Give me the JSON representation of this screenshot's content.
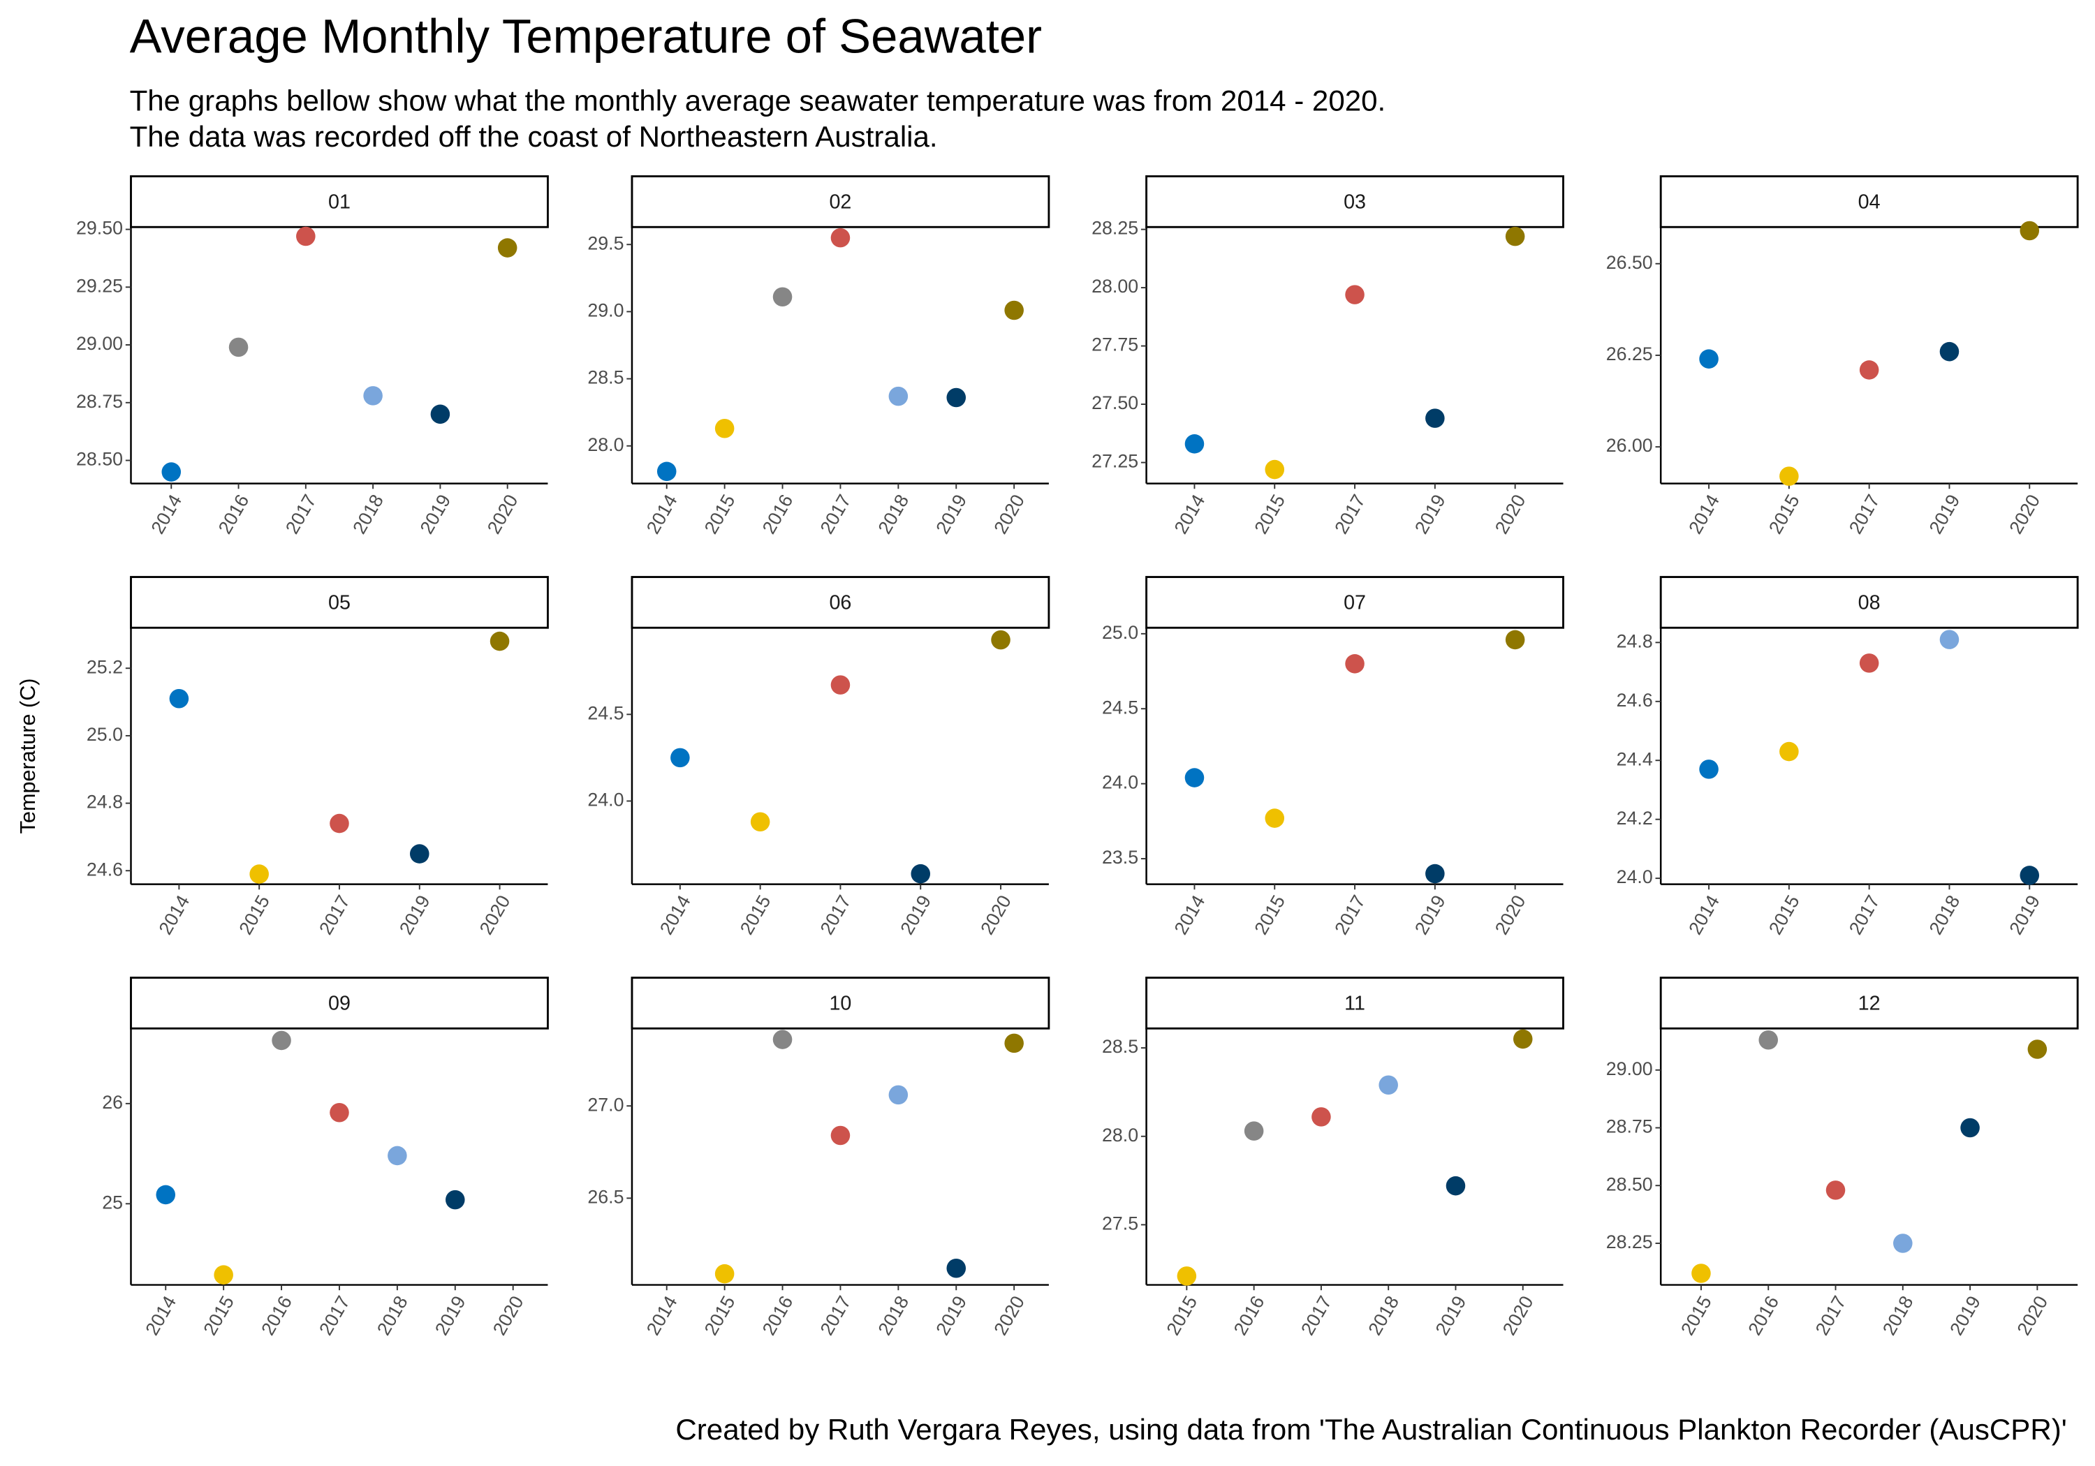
{
  "title": "Average Monthly Temperature of Seawater",
  "subtitle": [
    "The graphs bellow show what the monthly average seawater temperature was from 2014 - 2020.",
    "The data was recorded off the coast of Northeastern Australia."
  ],
  "y_label": "Temperature (C)",
  "caption": "Created by Ruth Vergara Reyes, using data from 'The Australian Continuous Plankton Recorder (AusCPR)'",
  "chart_data": [
    {
      "type": "scatter",
      "title": "01",
      "categories": [
        "2014",
        "2016",
        "2017",
        "2018",
        "2019",
        "2020"
      ],
      "values": [
        28.45,
        28.99,
        29.47,
        28.78,
        28.7,
        29.42
      ],
      "colors": [
        "#0073c2",
        "#868686",
        "#cd534c",
        "#7aa6dc",
        "#003c67",
        "#8f7700"
      ],
      "ylim": [
        28.4,
        29.51
      ],
      "yticks": [
        {
          "value": 28.5,
          "label": "28.50"
        },
        28.75,
        {
          "value": 29,
          "label": "29.00"
        },
        29.25,
        {
          "value": 29.5,
          "label": "29.50"
        }
      ]
    },
    {
      "type": "scatter",
      "title": "02",
      "categories": [
        "2014",
        "2015",
        "2016",
        "2017",
        "2018",
        "2019",
        "2020"
      ],
      "values": [
        27.81,
        28.13,
        29.11,
        29.55,
        28.37,
        28.36,
        29.01
      ],
      "colors": [
        "#0073c2",
        "#efc000",
        "#868686",
        "#cd534c",
        "#7aa6dc",
        "#003c67",
        "#8f7700"
      ],
      "ylim": [
        27.72,
        29.63
      ],
      "yticks": [
        {
          "value": 28,
          "label": "28.0"
        },
        28.5,
        {
          "value": 29,
          "label": "29.0"
        },
        29.5
      ]
    },
    {
      "type": "scatter",
      "title": "03",
      "categories": [
        "2014",
        "2015",
        "2017",
        "2019",
        "2020"
      ],
      "values": [
        27.33,
        27.22,
        27.97,
        27.44,
        28.22
      ],
      "colors": [
        "#0073c2",
        "#efc000",
        "#cd534c",
        "#003c67",
        "#8f7700"
      ],
      "ylim": [
        27.16,
        28.26
      ],
      "yticks": [
        27.25,
        {
          "value": 27.5,
          "label": "27.50"
        },
        27.75,
        {
          "value": 28,
          "label": "28.00"
        },
        28.25
      ]
    },
    {
      "type": "scatter",
      "title": "04",
      "categories": [
        "2014",
        "2015",
        "2017",
        "2019",
        "2020"
      ],
      "values": [
        26.24,
        25.92,
        26.21,
        26.26,
        26.59
      ],
      "colors": [
        "#0073c2",
        "#efc000",
        "#cd534c",
        "#003c67",
        "#8f7700"
      ],
      "ylim": [
        25.9,
        26.6
      ],
      "yticks": [
        {
          "value": 26,
          "label": "26.00"
        },
        26.25,
        {
          "value": 26.5,
          "label": "26.50"
        }
      ]
    },
    {
      "type": "scatter",
      "title": "05",
      "categories": [
        "2014",
        "2015",
        "2017",
        "2019",
        "2020"
      ],
      "values": [
        25.11,
        24.59,
        24.74,
        24.65,
        25.28
      ],
      "colors": [
        "#0073c2",
        "#efc000",
        "#cd534c",
        "#003c67",
        "#8f7700"
      ],
      "ylim": [
        24.56,
        25.32
      ],
      "yticks": [
        24.6,
        24.8,
        {
          "value": 25,
          "label": "25.0"
        },
        25.2
      ]
    },
    {
      "type": "scatter",
      "title": "06",
      "categories": [
        "2014",
        "2015",
        "2017",
        "2019",
        "2020"
      ],
      "values": [
        24.25,
        23.88,
        24.67,
        23.58,
        24.93
      ],
      "colors": [
        "#0073c2",
        "#efc000",
        "#cd534c",
        "#003c67",
        "#8f7700"
      ],
      "ylim": [
        23.52,
        25.0
      ],
      "yticks": [
        {
          "value": 24,
          "label": "24.0"
        },
        24.5
      ]
    },
    {
      "type": "scatter",
      "title": "07",
      "categories": [
        "2014",
        "2015",
        "2017",
        "2019",
        "2020"
      ],
      "values": [
        24.04,
        23.77,
        24.8,
        23.4,
        24.96
      ],
      "colors": [
        "#0073c2",
        "#efc000",
        "#cd534c",
        "#003c67",
        "#8f7700"
      ],
      "ylim": [
        23.33,
        25.04
      ],
      "yticks": [
        23.5,
        {
          "value": 24,
          "label": "24.0"
        },
        24.5,
        {
          "value": 25,
          "label": "25.0"
        }
      ]
    },
    {
      "type": "scatter",
      "title": "08",
      "categories": [
        "2014",
        "2015",
        "2017",
        "2018",
        "2019"
      ],
      "values": [
        24.37,
        24.43,
        24.73,
        24.81,
        24.01
      ],
      "colors": [
        "#0073c2",
        "#efc000",
        "#cd534c",
        "#7aa6dc",
        "#003c67"
      ],
      "ylim": [
        23.98,
        24.85
      ],
      "yticks": [
        {
          "value": 24,
          "label": "24.0"
        },
        24.2,
        24.4,
        24.6,
        24.8
      ]
    },
    {
      "type": "scatter",
      "title": "09",
      "categories": [
        "2014",
        "2015",
        "2016",
        "2017",
        "2018",
        "2019",
        "2020"
      ],
      "values": [
        25.09,
        24.29,
        26.63,
        25.91,
        25.48,
        25.04,
        null
      ],
      "colors": [
        "#0073c2",
        "#efc000",
        "#868686",
        "#cd534c",
        "#7aa6dc",
        "#003c67",
        null
      ],
      "ylim": [
        24.19,
        26.75
      ],
      "yticks": [
        25,
        26
      ]
    },
    {
      "type": "scatter",
      "title": "10",
      "categories": [
        "2014",
        "2015",
        "2016",
        "2017",
        "2018",
        "2019",
        "2020"
      ],
      "values": [
        null,
        26.09,
        27.36,
        26.84,
        27.06,
        26.12,
        27.34
      ],
      "colors": [
        null,
        "#efc000",
        "#868686",
        "#cd534c",
        "#7aa6dc",
        "#003c67",
        "#8f7700"
      ],
      "ylim": [
        26.03,
        27.42
      ],
      "yticks": [
        26.5,
        {
          "value": 27,
          "label": "27.0"
        }
      ]
    },
    {
      "type": "scatter",
      "title": "11",
      "categories": [
        "2015",
        "2016",
        "2017",
        "2018",
        "2019",
        "2020"
      ],
      "values": [
        27.21,
        28.03,
        28.11,
        28.29,
        27.72,
        28.55
      ],
      "colors": [
        "#efc000",
        "#868686",
        "#cd534c",
        "#7aa6dc",
        "#003c67",
        "#8f7700"
      ],
      "ylim": [
        27.16,
        28.61
      ],
      "yticks": [
        27.5,
        {
          "value": 28,
          "label": "28.0"
        },
        28.5
      ]
    },
    {
      "type": "scatter",
      "title": "12",
      "categories": [
        "2015",
        "2016",
        "2017",
        "2018",
        "2019",
        "2020"
      ],
      "values": [
        28.12,
        29.13,
        28.48,
        28.25,
        28.75,
        29.09
      ],
      "colors": [
        "#efc000",
        "#868686",
        "#cd534c",
        "#7aa6dc",
        "#003c67",
        "#8f7700"
      ],
      "ylim": [
        28.07,
        29.18
      ],
      "yticks": [
        28.25,
        {
          "value": 28.5,
          "label": "28.50"
        },
        28.75,
        {
          "value": 29,
          "label": "29.00"
        }
      ]
    }
  ]
}
